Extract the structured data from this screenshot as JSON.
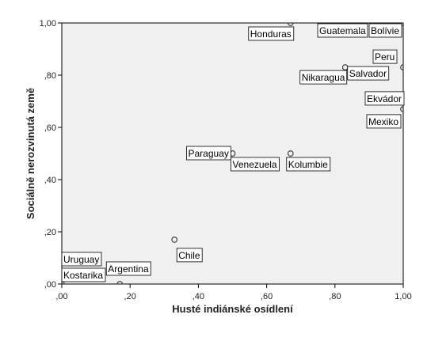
{
  "chart_data": {
    "type": "scatter",
    "xlabel": "Husté indiánské osídlení",
    "ylabel": "Sociálně nerozvinutá země",
    "xlim": [
      0,
      1
    ],
    "ylim": [
      0,
      1
    ],
    "x_ticks": [
      ",00",
      ",20",
      ",40",
      ",60",
      ",80",
      "1,00"
    ],
    "y_ticks": [
      ",00",
      ",20",
      ",40",
      ",60",
      ",80",
      "1,00"
    ],
    "grid": false,
    "colors": {
      "plot_background": "#f0f0f0",
      "marker": "#333333",
      "axis": "#000000"
    },
    "points": [
      {
        "label": "Honduras",
        "x": 0.67,
        "y": 1.0
      },
      {
        "label": "Guatemala",
        "x": 1.0,
        "y": 1.0
      },
      {
        "label": "Bolívie",
        "x": 1.0,
        "y": 1.0
      },
      {
        "label": "Peru",
        "x": 1.0,
        "y": 0.83
      },
      {
        "label": "Nikaragua",
        "x": 0.83,
        "y": 0.83
      },
      {
        "label": "Salvador",
        "x": 0.83,
        "y": 0.83
      },
      {
        "label": "Ekvádor",
        "x": 1.0,
        "y": 0.67
      },
      {
        "label": "Mexiko",
        "x": 1.0,
        "y": 0.67
      },
      {
        "label": "Paraguay",
        "x": 0.5,
        "y": 0.5
      },
      {
        "label": "Venezuela",
        "x": 0.5,
        "y": 0.5
      },
      {
        "label": "Kolumbie",
        "x": 0.67,
        "y": 0.5
      },
      {
        "label": "Chile",
        "x": 0.33,
        "y": 0.17
      },
      {
        "label": "Uruguay",
        "x": 0.0,
        "y": 0.0
      },
      {
        "label": "Kostarika",
        "x": 0.0,
        "y": 0.0
      },
      {
        "label": "Argentina",
        "x": 0.17,
        "y": 0.0
      }
    ]
  }
}
